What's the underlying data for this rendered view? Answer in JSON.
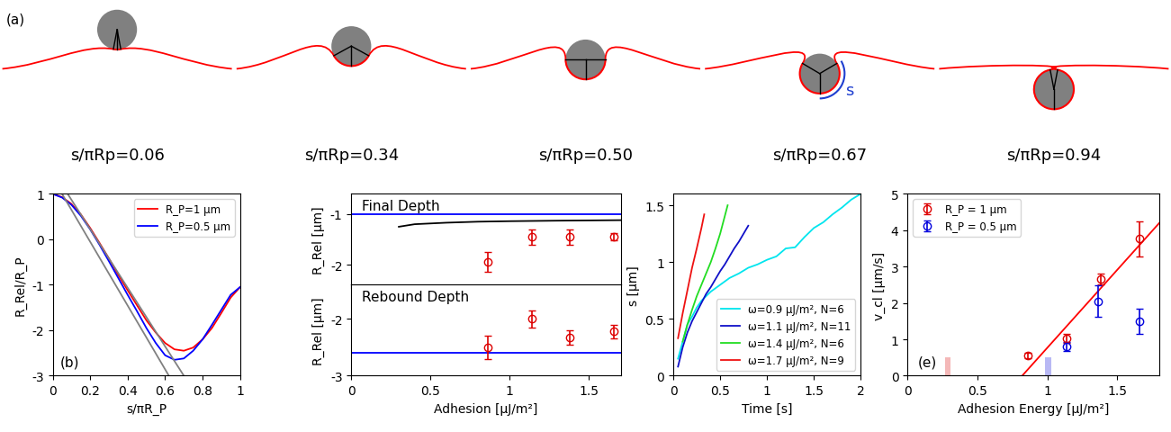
{
  "panel_a": {
    "label": "(a)",
    "stages": [
      {
        "label": "s/πRp=0.06",
        "wrapping": 0.06
      },
      {
        "label": "s/πRp=0.34",
        "wrapping": 0.34
      },
      {
        "label": "s/πRp=0.50",
        "wrapping": 0.5
      },
      {
        "label": "s/πRp=0.67",
        "wrapping": 0.67,
        "arc_label": "s"
      },
      {
        "label": "s/πRp=0.94",
        "wrapping": 0.94
      }
    ]
  },
  "chart_data": [
    {
      "type": "line",
      "panel_label": "(b)",
      "xlabel": "s/πR_P",
      "ylabel": "R_Rel/R_P",
      "xlim": [
        0,
        1
      ],
      "ylim": [
        -3,
        1
      ],
      "xticks": [
        0,
        0.2,
        0.4,
        0.6,
        0.8,
        1
      ],
      "yticks": [
        -3,
        -2,
        -1,
        0,
        1
      ],
      "legend": "upper right",
      "series": [
        {
          "name": "R_P=1 μm",
          "color": "#ff0000",
          "x": [
            0,
            0.05,
            0.1,
            0.15,
            0.2,
            0.25,
            0.3,
            0.35,
            0.4,
            0.45,
            0.5,
            0.55,
            0.6,
            0.65,
            0.7,
            0.75,
            0.8,
            0.85,
            0.9,
            0.95,
            1.0
          ],
          "values": [
            1.0,
            0.93,
            0.78,
            0.55,
            0.25,
            -0.08,
            -0.42,
            -0.78,
            -1.12,
            -1.45,
            -1.78,
            -2.05,
            -2.28,
            -2.42,
            -2.45,
            -2.38,
            -2.2,
            -1.95,
            -1.62,
            -1.28,
            -1.05
          ]
        },
        {
          "name": "R_P=0.5 μm",
          "color": "#0000ff",
          "x": [
            0,
            0.05,
            0.1,
            0.15,
            0.2,
            0.25,
            0.3,
            0.35,
            0.4,
            0.45,
            0.5,
            0.55,
            0.6,
            0.65,
            0.7,
            0.75,
            0.8,
            0.85,
            0.9,
            0.95,
            1.0
          ],
          "values": [
            1.0,
            0.92,
            0.76,
            0.52,
            0.22,
            -0.12,
            -0.48,
            -0.85,
            -1.22,
            -1.58,
            -1.95,
            -2.28,
            -2.55,
            -2.65,
            -2.62,
            -2.45,
            -2.2,
            -1.88,
            -1.55,
            -1.22,
            -1.05
          ]
        },
        {
          "color": "#808080",
          "x": [
            0.05,
            0.62
          ],
          "values": [
            1.0,
            -3.0
          ]
        },
        {
          "color": "#808080",
          "x": [
            0.08,
            0.7
          ],
          "values": [
            1.0,
            -3.0
          ]
        }
      ]
    },
    {
      "type": "scatter",
      "title": "Final Depth",
      "ylabel": "R_Rel [μm]",
      "tick_labels": "y",
      "xlim": [
        0,
        1.7
      ],
      "ylim": [
        -2.4,
        -0.6
      ],
      "xticks": [
        0,
        0.5,
        1,
        1.5
      ],
      "yticks": [
        -2,
        -1
      ],
      "series": [
        {
          "type": "hline",
          "color": "#0000ff",
          "values": [
            -1.0
          ]
        },
        {
          "type": "line",
          "color": "#000000",
          "x": [
            0.3,
            0.4,
            0.6,
            0.8,
            1.0,
            1.3,
            1.7
          ],
          "values": [
            -1.25,
            -1.2,
            -1.17,
            -1.15,
            -1.14,
            -1.13,
            -1.12
          ]
        },
        {
          "color": "#dd0000",
          "marker": "o",
          "x": [
            0.86,
            1.14,
            1.38,
            1.66
          ],
          "values": [
            -1.95,
            -1.45,
            -1.45,
            -1.45
          ],
          "errors": [
            0.2,
            0.15,
            0.15,
            0.07
          ]
        }
      ]
    },
    {
      "type": "scatter",
      "title": "Rebound Depth",
      "ylabel": "R_Rel [μm]",
      "xlabel": "Adhesion [μJ/m²]",
      "xlim": [
        0,
        1.7
      ],
      "ylim": [
        -3,
        -1.4
      ],
      "xticks": [
        0,
        0.5,
        1,
        1.5
      ],
      "yticks": [
        -3,
        -2
      ],
      "series": [
        {
          "type": "hline",
          "color": "#0000ff",
          "values": [
            -2.6
          ]
        },
        {
          "color": "#dd0000",
          "marker": "o",
          "x": [
            0.86,
            1.14,
            1.38,
            1.66
          ],
          "values": [
            -2.5,
            -2.0,
            -2.33,
            -2.22
          ],
          "errors": [
            0.2,
            0.15,
            0.13,
            0.12
          ]
        }
      ]
    },
    {
      "type": "line",
      "xlabel": "Time [s]",
      "ylabel": "s [μm]",
      "xlim": [
        0,
        2
      ],
      "ylim": [
        0,
        1.6
      ],
      "xticks": [
        0,
        0.5,
        1,
        1.5,
        2
      ],
      "yticks": [
        0,
        0.5,
        1,
        1.5
      ],
      "legend": "lower right",
      "series": [
        {
          "name": "ω=0.9 μJ/m², N=6",
          "color": "#00e5ee",
          "x": [
            0.05,
            0.1,
            0.15,
            0.2,
            0.25,
            0.3,
            0.4,
            0.5,
            0.6,
            0.7,
            0.8,
            0.9,
            1.0,
            1.1,
            1.2,
            1.3,
            1.4,
            1.5,
            1.6,
            1.7,
            1.8,
            1.9,
            2.0
          ],
          "values": [
            0.15,
            0.3,
            0.45,
            0.52,
            0.6,
            0.66,
            0.74,
            0.8,
            0.86,
            0.9,
            0.95,
            0.98,
            1.02,
            1.05,
            1.12,
            1.13,
            1.22,
            1.3,
            1.35,
            1.42,
            1.48,
            1.55,
            1.6
          ]
        },
        {
          "name": "ω=1.1 μJ/m², N=11",
          "color": "#1010c8",
          "x": [
            0.05,
            0.1,
            0.15,
            0.2,
            0.25,
            0.3,
            0.35,
            0.4,
            0.45,
            0.5,
            0.55,
            0.6,
            0.65,
            0.7,
            0.75,
            0.8
          ],
          "values": [
            0.08,
            0.25,
            0.38,
            0.48,
            0.56,
            0.64,
            0.72,
            0.78,
            0.85,
            0.92,
            0.98,
            1.05,
            1.12,
            1.18,
            1.25,
            1.32
          ]
        },
        {
          "name": "ω=1.4 μJ/m², N=6",
          "color": "#22dd22",
          "x": [
            0.1,
            0.15,
            0.2,
            0.25,
            0.3,
            0.35,
            0.4,
            0.45,
            0.5,
            0.58
          ],
          "values": [
            0.3,
            0.45,
            0.58,
            0.7,
            0.8,
            0.9,
            1.0,
            1.12,
            1.25,
            1.5
          ]
        },
        {
          "name": "ω=1.7 μJ/m², N=9",
          "color": "#ee1111",
          "x": [
            0.05,
            0.1,
            0.15,
            0.2,
            0.25,
            0.3,
            0.33
          ],
          "values": [
            0.33,
            0.55,
            0.75,
            0.95,
            1.12,
            1.3,
            1.42
          ]
        }
      ]
    },
    {
      "type": "scatter",
      "panel_label": "(e)",
      "xlabel": "Adhesion Energy [μJ/m²]",
      "ylabel": "v_cl [μm/s]",
      "xlim": [
        0,
        1.8
      ],
      "ylim": [
        0,
        5
      ],
      "xticks": [
        0,
        0.5,
        1,
        1.5
      ],
      "yticks": [
        0,
        1,
        2,
        3,
        4,
        5
      ],
      "legend": "upper left",
      "series": [
        {
          "type": "band",
          "color": "#f4b8b8",
          "x_range": [
            0.27,
            0.31
          ],
          "values": [
            0.5
          ]
        },
        {
          "type": "band",
          "color": "#b8b8f4",
          "x_range": [
            0.98,
            1.03
          ],
          "values": [
            0.5
          ]
        },
        {
          "type": "line",
          "color": "#ff0000",
          "x": [
            0.82,
            1.8
          ],
          "values": [
            0,
            4.2
          ]
        },
        {
          "name": "R_P = 1 μm",
          "color": "#dd0000",
          "marker": "o",
          "x": [
            0.86,
            1.14,
            1.38,
            1.66
          ],
          "values": [
            0.55,
            1.02,
            2.65,
            3.77
          ],
          "errors": [
            0.08,
            0.12,
            0.15,
            0.48
          ]
        },
        {
          "name": "R_P = 0.5 μm",
          "color": "#0000dd",
          "marker": "o",
          "x": [
            1.14,
            1.36,
            1.66
          ],
          "values": [
            0.8,
            2.05,
            1.5
          ],
          "errors": [
            0.12,
            0.43,
            0.35
          ]
        }
      ]
    }
  ]
}
